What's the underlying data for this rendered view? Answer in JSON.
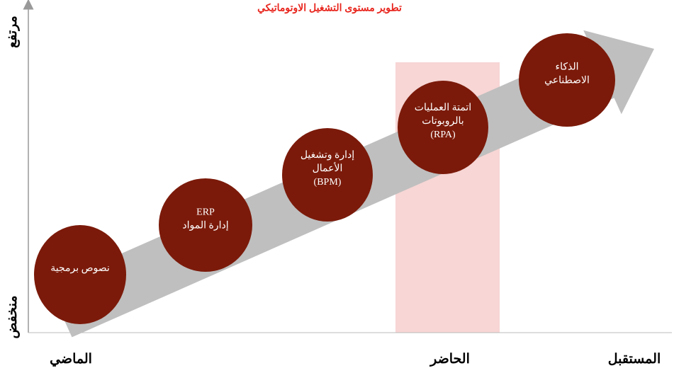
{
  "title": "تطوير مستوى التشغيل الاوتوماتيكي",
  "y_axis": {
    "high": "مرتفع",
    "low": "منخفض"
  },
  "x_axis": {
    "past": "الماضي",
    "present": "الحاضر",
    "future": "المستقبل"
  },
  "nodes": [
    {
      "lines": [
        "نصوص برمجية"
      ]
    },
    {
      "lines": [
        "ERP",
        "إدارة المواد"
      ]
    },
    {
      "lines": [
        "إدارة وتشغيل",
        "الأعمال",
        "(BPM)"
      ]
    },
    {
      "lines": [
        "اتمتة العمليات",
        "بالروبوتات",
        "(RPA)"
      ]
    },
    {
      "lines": [
        "الذكاء",
        "الاصطناعي"
      ]
    }
  ]
}
